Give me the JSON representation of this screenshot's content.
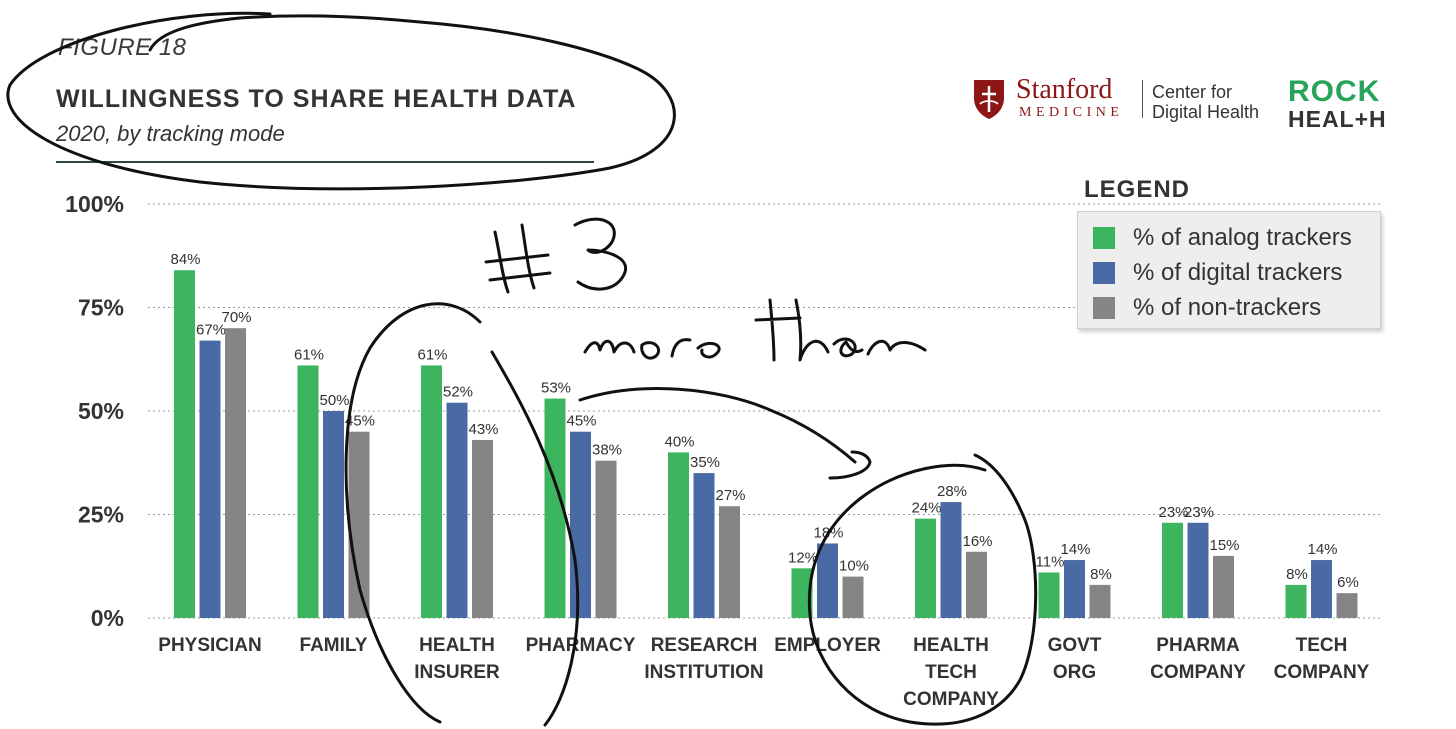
{
  "figure": {
    "label": "FIGURE 18",
    "title": "WILLINGNESS TO SHARE HEALTH DATA",
    "subtitle": "2020, by tracking mode"
  },
  "logos": {
    "stanford": "Stanford",
    "medicine": "MEDICINE",
    "center_line1": "Center for",
    "center_line2": "Digital Health",
    "rock": "ROCK",
    "health": "HEAL+H"
  },
  "legend": {
    "title": "LEGEND",
    "items": [
      {
        "label": "% of analog trackers",
        "color": "#3cb55e"
      },
      {
        "label": "% of digital trackers",
        "color": "#4a6aa5"
      },
      {
        "label": "% of non-trackers",
        "color": "#858585"
      }
    ]
  },
  "annotations": {
    "number": "#3",
    "phrase": "more than"
  },
  "chart_data": {
    "type": "bar",
    "ylim": [
      0,
      100
    ],
    "yticks": [
      "0%",
      "25%",
      "50%",
      "75%",
      "100%"
    ],
    "grid": true,
    "legend_position": "top-right",
    "categories": [
      [
        "PHYSICIAN"
      ],
      [
        "FAMILY"
      ],
      [
        "HEALTH",
        "INSURER"
      ],
      [
        "PHARMACY"
      ],
      [
        "RESEARCH",
        "INSTITUTION"
      ],
      [
        "EMPLOYER"
      ],
      [
        "HEALTH",
        "TECH",
        "COMPANY"
      ],
      [
        "GOVT",
        "ORG"
      ],
      [
        "PHARMA",
        "COMPANY"
      ],
      [
        "TECH",
        "COMPANY"
      ]
    ],
    "series": [
      {
        "name": "% of analog trackers",
        "color": "#3cb55e",
        "values": [
          84,
          61,
          61,
          53,
          40,
          12,
          24,
          11,
          23,
          8
        ]
      },
      {
        "name": "% of digital trackers",
        "color": "#4a6aa5",
        "values": [
          67,
          50,
          52,
          45,
          35,
          18,
          28,
          14,
          23,
          14
        ]
      },
      {
        "name": "% of non-trackers",
        "color": "#858585",
        "values": [
          70,
          45,
          43,
          38,
          27,
          10,
          16,
          8,
          15,
          6
        ]
      }
    ]
  }
}
